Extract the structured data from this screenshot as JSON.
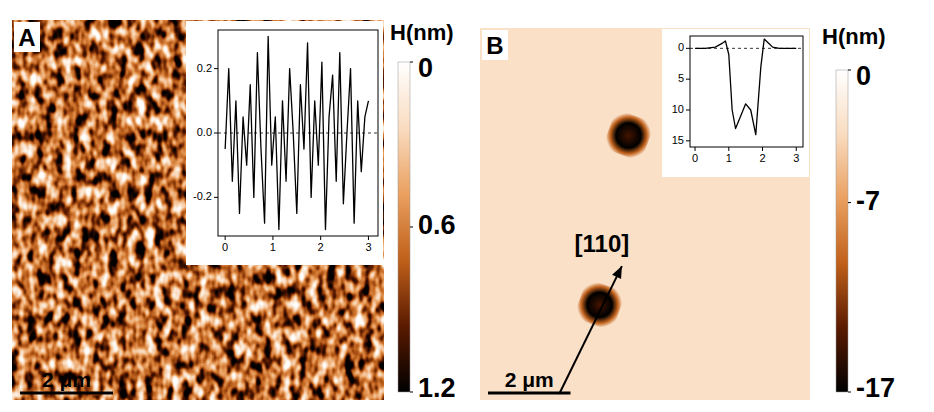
{
  "chart_data": [
    {
      "type": "heatmap",
      "panel_label": "A",
      "xlim": [
        0,
        8
      ],
      "ylim": [
        0,
        8
      ],
      "scale_bar": {
        "value": 2,
        "label": "2 μm"
      },
      "colorbar": {
        "title": "H(nm)",
        "lim": [
          0,
          1.2
        ],
        "ticks": [
          0,
          0.6,
          1.2
        ],
        "colors": [
          "#ffffff",
          "#f9dcc0",
          "#eaa060",
          "#c0601a",
          "#5a1a00",
          "#000000"
        ]
      },
      "inset": {
        "type": "line",
        "color": "#000000",
        "x": [
          0,
          0.075,
          0.15,
          0.225,
          0.3,
          0.375,
          0.45,
          0.525,
          0.6,
          0.675,
          0.75,
          0.825,
          0.9,
          0.975,
          1.05,
          1.125,
          1.2,
          1.275,
          1.35,
          1.425,
          1.5,
          1.575,
          1.65,
          1.725,
          1.8,
          1.875,
          1.95,
          2.025,
          2.1,
          2.175,
          2.25,
          2.325,
          2.4,
          2.475,
          2.55,
          2.625,
          2.7,
          2.775,
          2.85,
          2.925,
          3.0
        ],
        "values": [
          -0.05,
          0.2,
          -0.15,
          0.1,
          -0.25,
          0.05,
          -0.1,
          0.15,
          -0.2,
          0.25,
          -0.05,
          -0.28,
          0.3,
          -0.1,
          0.05,
          -0.3,
          0.1,
          -0.15,
          0.2,
          0.0,
          -0.25,
          0.15,
          -0.05,
          0.28,
          -0.2,
          0.1,
          -0.1,
          0.22,
          -0.3,
          0.05,
          0.18,
          -0.15,
          0.25,
          -0.22,
          0.0,
          0.2,
          -0.28,
          0.1,
          -0.12,
          0.05,
          0.1
        ],
        "xlim": [
          -0.15,
          3.2
        ],
        "ylim": [
          -0.32,
          0.32
        ],
        "xticks": [
          0,
          1,
          2,
          3
        ],
        "yticks": [
          0.2,
          {
            "value": 0,
            "label": "0.0"
          },
          -0.2
        ]
      }
    },
    {
      "type": "heatmap",
      "panel_label": "B",
      "xlim": [
        0,
        8
      ],
      "ylim": [
        0,
        9
      ],
      "scale_bar": {
        "value": 2,
        "label": "2 μm"
      },
      "colorbar": {
        "title": "H(nm)",
        "lim": [
          0,
          -17
        ],
        "ticks": [
          0,
          -7,
          -17
        ],
        "colors": [
          "#ffffff",
          "#f9dcc0",
          "#eaa060",
          "#c0601a",
          "#5a1a00",
          "#000000"
        ]
      },
      "background_height": -3,
      "pits": [
        {
          "x": 3.6,
          "y": 2.6,
          "size": 1.0,
          "depth": -17
        },
        {
          "x": 2.9,
          "y": 6.7,
          "size": 1.0,
          "depth": -17
        }
      ],
      "annotation": "[110]",
      "inset": {
        "type": "line",
        "color": "#000000",
        "x": [
          0,
          0.3,
          0.6,
          0.8,
          0.9,
          1.0,
          1.1,
          1.2,
          1.35,
          1.5,
          1.65,
          1.8,
          1.95,
          2.05,
          2.15,
          2.3,
          2.5,
          2.8,
          3.0
        ],
        "values": [
          0,
          0,
          0.2,
          0.8,
          1.2,
          -1,
          -10,
          -13,
          -11,
          -9,
          -10,
          -14,
          -3,
          1.5,
          1,
          0.2,
          0,
          0,
          0
        ],
        "xlim": [
          -0.15,
          3.2
        ],
        "ylim": [
          -16,
          2
        ],
        "xticks": [
          0,
          1,
          2,
          3
        ],
        "yticks": [
          0,
          {
            "value": -5,
            "label": "5"
          },
          {
            "value": -10,
            "label": "10"
          },
          {
            "value": -15,
            "label": "15"
          }
        ]
      }
    }
  ]
}
